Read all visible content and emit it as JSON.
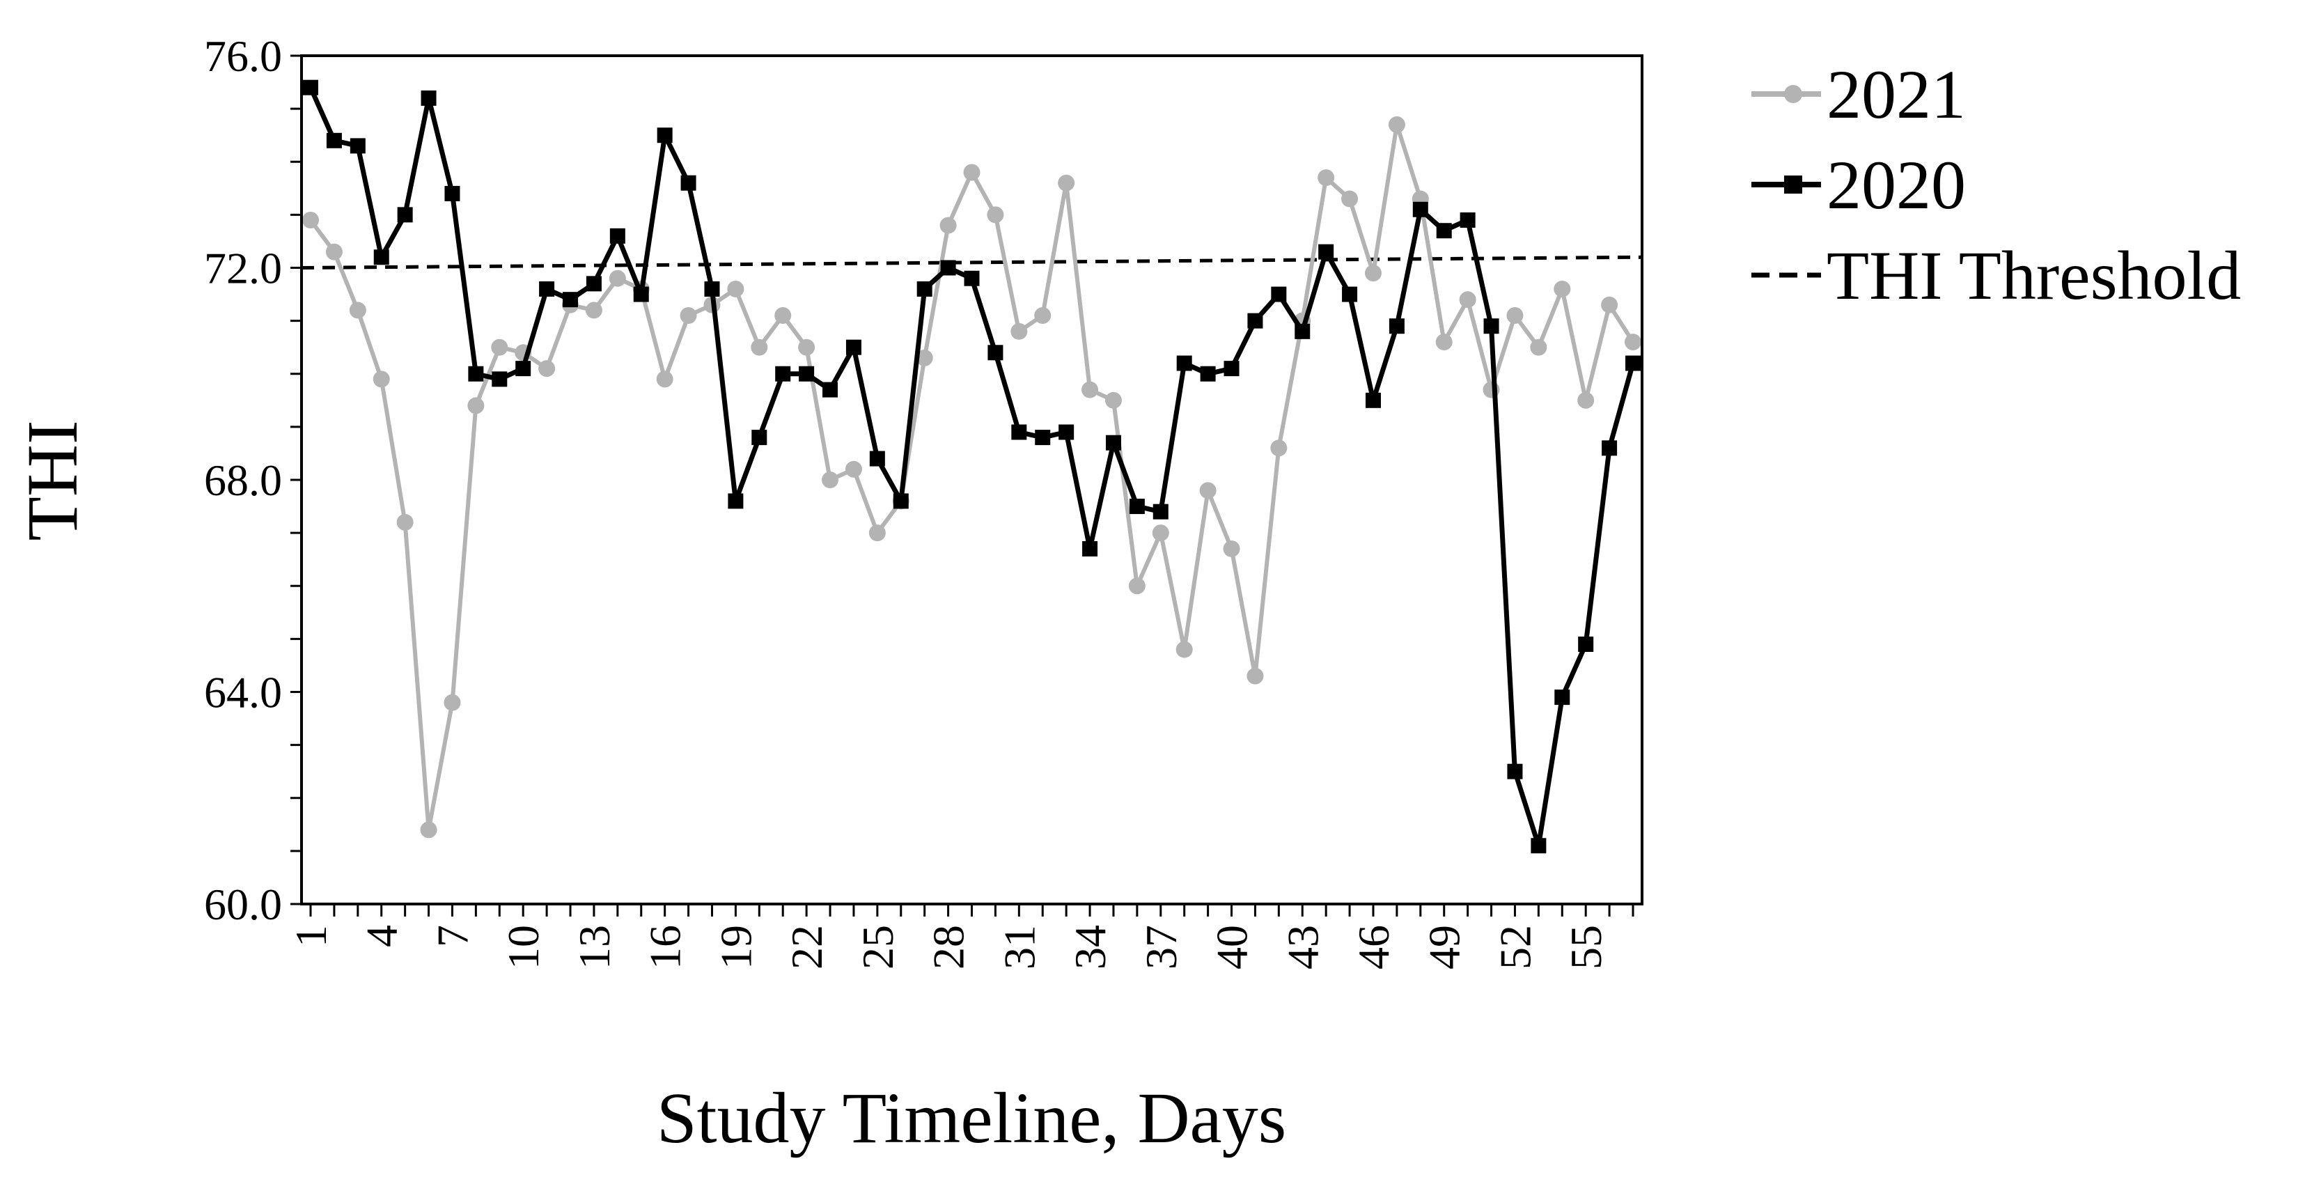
{
  "chart_data": {
    "type": "line",
    "xlabel": "Study Timeline, Days",
    "ylabel": "THI",
    "ylim": [
      60,
      76
    ],
    "yticks": [
      "60.0",
      "64.0",
      "68.0",
      "72.0",
      "76.0"
    ],
    "xticks": [
      "1",
      "4",
      "7",
      "10",
      "13",
      "16",
      "19",
      "22",
      "25",
      "28",
      "31",
      "34",
      "37",
      "40",
      "43",
      "46",
      "49",
      "52",
      "55"
    ],
    "x": [
      1,
      2,
      3,
      4,
      5,
      6,
      7,
      8,
      9,
      10,
      11,
      12,
      13,
      14,
      15,
      16,
      17,
      18,
      19,
      20,
      21,
      22,
      23,
      24,
      25,
      26,
      27,
      28,
      29,
      30,
      31,
      32,
      33,
      34,
      35,
      36,
      37,
      38,
      39,
      40,
      41,
      42,
      43,
      44,
      45,
      46,
      47,
      48,
      49,
      50,
      51,
      52,
      53,
      54,
      55,
      56,
      57
    ],
    "legend_position": "right",
    "grid": false,
    "series": [
      {
        "name": "2021",
        "color": "#b3b3b3",
        "marker": "circle",
        "values": [
          72.9,
          72.3,
          71.2,
          69.9,
          67.2,
          61.4,
          63.8,
          69.4,
          70.5,
          70.4,
          70.1,
          71.3,
          71.2,
          71.8,
          71.6,
          69.9,
          71.1,
          71.3,
          71.6,
          70.5,
          71.1,
          70.5,
          68.0,
          68.2,
          67.0,
          67.6,
          70.3,
          72.8,
          73.8,
          73.0,
          70.8,
          71.1,
          73.6,
          69.7,
          69.5,
          66.0,
          67.0,
          64.8,
          67.8,
          66.7,
          64.3,
          68.6,
          71.0,
          73.7,
          73.3,
          71.9,
          74.7,
          73.3,
          70.6,
          71.4,
          69.7,
          71.1,
          70.5,
          71.6,
          69.5,
          71.3,
          70.6
        ]
      },
      {
        "name": "2020",
        "color": "#000000",
        "marker": "square",
        "values": [
          75.4,
          74.4,
          74.3,
          72.2,
          73.0,
          75.2,
          73.4,
          70.0,
          69.9,
          70.1,
          71.6,
          71.4,
          71.7,
          72.6,
          71.5,
          74.5,
          73.6,
          71.6,
          67.6,
          68.8,
          70.0,
          70.0,
          69.7,
          70.5,
          68.4,
          67.6,
          71.6,
          72.0,
          71.8,
          70.4,
          68.9,
          68.8,
          68.9,
          66.7,
          68.7,
          67.5,
          67.4,
          70.2,
          70.0,
          70.1,
          71.0,
          71.5,
          70.8,
          72.3,
          71.5,
          69.5,
          70.9,
          73.1,
          72.7,
          72.9,
          70.9,
          62.5,
          61.1,
          63.9,
          64.9,
          68.6,
          70.2
        ]
      }
    ],
    "threshold": {
      "name": "THI Threshold",
      "values": [
        72.0,
        72.2
      ],
      "style": "dashed",
      "color": "#000000"
    }
  }
}
